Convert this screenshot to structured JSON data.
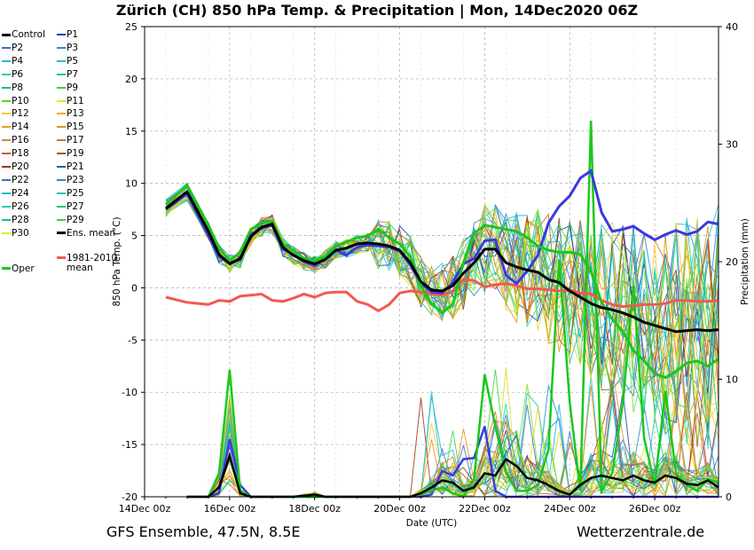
{
  "title": "Zürich  (CH)  850 hPa Temp. & Precipitation | Mon, 14Dec2020 06Z",
  "footer": {
    "left": "GFS Ensemble, 47.5N, 8.5E",
    "right": "Wetterzentrale.de"
  },
  "colors": {
    "control": "#000000",
    "ens_mean": "#000000",
    "oper": "#19c819",
    "climate_mean": "#f05a50",
    "perturbations": [
      "#1f3fb0",
      "#3a72c8",
      "#1e90d8",
      "#25b4d8",
      "#20c0c8",
      "#1ed0a8",
      "#20c878",
      "#30d840",
      "#78e020",
      "#d8e020",
      "#f0d030",
      "#e8b028",
      "#e09020",
      "#d87818",
      "#c86018",
      "#b84818",
      "#a03018",
      "#1f3fb0",
      "#3a72c8",
      "#1e90d8",
      "#25b4d8",
      "#20c0c8",
      "#1ed0a8",
      "#20c878",
      "#30d840",
      "#78e020",
      "#d8e020",
      "#f0d030",
      "#e8b028",
      "#e09020"
    ]
  },
  "legend": [
    {
      "label": "Control",
      "color": "#000000"
    },
    {
      "label": "P1",
      "color": "#1f3fb0"
    },
    {
      "label": "P2",
      "color": "#3a72c8"
    },
    {
      "label": "P3",
      "color": "#1e90d8"
    },
    {
      "label": "P4",
      "color": "#25b4d8"
    },
    {
      "label": "P5",
      "color": "#20c0c8"
    },
    {
      "label": "P6",
      "color": "#1ed0a8"
    },
    {
      "label": "P7",
      "color": "#20c878"
    },
    {
      "label": "P8",
      "color": "#20b890"
    },
    {
      "label": "P9",
      "color": "#30d840"
    },
    {
      "label": "P10",
      "color": "#50e020"
    },
    {
      "label": "P11",
      "color": "#e8e820"
    },
    {
      "label": "P12",
      "color": "#f0d030"
    },
    {
      "label": "P13",
      "color": "#e8b028"
    },
    {
      "label": "P14",
      "color": "#e8a020"
    },
    {
      "label": "P15",
      "color": "#e09020"
    },
    {
      "label": "P16",
      "color": "#c89040"
    },
    {
      "label": "P17",
      "color": "#d87818"
    },
    {
      "label": "P18",
      "color": "#c86018"
    },
    {
      "label": "P19",
      "color": "#b84818"
    },
    {
      "label": "P20",
      "color": "#a03018"
    },
    {
      "label": "P21",
      "color": "#1f5fb0"
    },
    {
      "label": "P22",
      "color": "#3a72c8"
    },
    {
      "label": "P23",
      "color": "#1e90d8"
    },
    {
      "label": "P24",
      "color": "#25b4d8"
    },
    {
      "label": "P25",
      "color": "#20c0c8"
    },
    {
      "label": "P26",
      "color": "#1ed0a8"
    },
    {
      "label": "P27",
      "color": "#20c878"
    },
    {
      "label": "P28",
      "color": "#20b890"
    },
    {
      "label": "P29",
      "color": "#30d840"
    },
    {
      "label": "P30",
      "color": "#e8e820"
    },
    {
      "label": "Ens. mean",
      "color": "#000000"
    },
    {
      "label": "1981-2010 mean",
      "color": "#f05a50"
    },
    {
      "label": "Oper",
      "color": "#19c819"
    }
  ],
  "chart_data": {
    "type": "line",
    "xlabel": "Date (UTC)",
    "ylabel": "850 hPa Temp. (°C)",
    "y2label": "Precipitation (mm)",
    "xlim": [
      0,
      324
    ],
    "ylim": [
      -20,
      25
    ],
    "y2lim": [
      0,
      40
    ],
    "x_ticks": [
      0,
      48,
      96,
      144,
      192,
      240,
      288
    ],
    "x_tick_labels": [
      "14Dec 00z",
      "16Dec 00z",
      "18Dec 00z",
      "20Dec 00z",
      "22Dec 00z",
      "24Dec 00z",
      "26Dec 00z"
    ],
    "y_ticks": [
      -20,
      -15,
      -10,
      -5,
      0,
      5,
      10,
      15,
      20,
      25
    ],
    "y2_ticks": [
      0,
      10,
      20,
      30,
      40
    ],
    "grid": true,
    "temp_x": [
      12,
      24,
      36,
      42,
      48,
      54,
      60,
      66,
      72,
      78,
      84,
      90,
      96,
      102,
      108,
      114,
      120,
      126,
      132,
      138,
      144,
      150,
      156,
      162,
      168,
      174,
      180,
      186,
      192,
      198,
      204,
      210,
      216,
      222,
      228,
      234,
      240,
      246,
      252,
      258,
      264,
      270,
      276,
      282,
      288,
      294,
      300,
      306,
      312,
      318,
      324
    ],
    "series": [
      {
        "name": "Ens. mean",
        "role": "ens_mean",
        "values": [
          7.6,
          9.2,
          5.4,
          3.2,
          2.3,
          2.8,
          4.9,
          5.8,
          6.1,
          3.9,
          3.1,
          2.6,
          2.3,
          2.7,
          3.6,
          3.8,
          4.2,
          4.3,
          4.2,
          4.0,
          3.6,
          2.4,
          0.6,
          -0.2,
          -0.3,
          0.2,
          1.4,
          2.4,
          3.7,
          3.7,
          2.4,
          2.0,
          1.7,
          1.5,
          0.8,
          0.5,
          -0.3,
          -0.9,
          -1.5,
          -1.9,
          -2.1,
          -2.4,
          -2.8,
          -3.3,
          -3.6,
          -3.9,
          -4.2,
          -4.1,
          -4.0,
          -4.1,
          -4.0
        ]
      },
      {
        "name": "1981-2010 mean",
        "role": "climate_mean",
        "values": [
          -0.9,
          -1.4,
          -1.6,
          -1.2,
          -1.3,
          -0.8,
          -0.7,
          -0.6,
          -1.2,
          -1.3,
          -1.0,
          -0.6,
          -0.9,
          -0.5,
          -0.4,
          -0.4,
          -1.3,
          -1.6,
          -2.2,
          -1.6,
          -0.5,
          -0.3,
          -0.4,
          -0.6,
          -0.7,
          -0.3,
          0.8,
          0.7,
          0.1,
          0.3,
          0.4,
          0.2,
          -0.1,
          -0.1,
          -0.2,
          -0.3,
          -0.2,
          -0.5,
          -0.6,
          -1.2,
          -1.6,
          -1.8,
          -1.7,
          -1.6,
          -1.6,
          -1.5,
          -1.2,
          -1.2,
          -1.3,
          -1.3,
          -1.2
        ]
      },
      {
        "name": "P1",
        "role": "highlight_blue",
        "values": [
          7.5,
          9.0,
          5.0,
          3.0,
          2.4,
          2.7,
          5.1,
          5.7,
          6.0,
          3.7,
          3.2,
          2.5,
          2.1,
          2.8,
          3.6,
          3.1,
          3.9,
          4.1,
          4.0,
          3.9,
          3.5,
          2.2,
          0.4,
          -0.4,
          -0.5,
          0.5,
          2.3,
          2.8,
          4.5,
          4.6,
          1.2,
          0.4,
          1.6,
          3.1,
          6.2,
          7.8,
          8.8,
          10.5,
          11.2,
          7.2,
          5.4,
          5.6,
          5.9,
          5.2,
          4.6,
          5.1,
          5.5,
          5.1,
          5.4,
          6.3,
          6.1
        ]
      },
      {
        "name": "Oper",
        "role": "oper",
        "values": [
          8.0,
          9.8,
          6.0,
          3.8,
          2.6,
          3.4,
          5.6,
          6.2,
          6.4,
          4.2,
          3.6,
          2.8,
          2.6,
          3.0,
          4.0,
          4.4,
          4.8,
          5.0,
          5.6,
          4.8,
          4.2,
          3.0,
          0.2,
          -1.5,
          -2.4,
          -1.6,
          2.4,
          5.2,
          6.0,
          5.8,
          5.6,
          5.4,
          4.8,
          4.0,
          3.6,
          3.4,
          3.4,
          3.2,
          1.6,
          -1.4,
          -3.0,
          -4.2,
          -6.0,
          -7.0,
          -8.2,
          -8.6,
          -8.0,
          -7.2,
          -7.0,
          -7.5,
          -6.8
        ]
      }
    ],
    "precip_x": [
      24,
      30,
      36,
      42,
      48,
      54,
      60,
      66,
      72,
      78,
      84,
      90,
      96,
      102,
      108,
      114,
      120,
      126,
      132,
      138,
      144,
      150,
      156,
      162,
      168,
      174,
      180,
      186,
      192,
      198,
      204,
      210,
      216,
      222,
      228,
      234,
      240,
      246,
      252,
      258,
      264,
      270,
      276,
      282,
      288,
      294,
      300,
      306,
      312,
      318,
      324
    ],
    "precip_series": [
      {
        "name": "Ens. mean",
        "role": "ens_mean",
        "values": [
          0,
          0,
          0,
          0.8,
          3.5,
          0.3,
          0,
          0,
          0,
          0,
          0,
          0.1,
          0.2,
          0,
          0,
          0,
          0,
          0,
          0,
          0,
          0,
          0,
          0.3,
          0.8,
          1.4,
          1.2,
          0.5,
          0.8,
          2.0,
          1.8,
          3.2,
          2.6,
          1.6,
          1.4,
          1.0,
          0.5,
          0.2,
          1.0,
          1.6,
          1.8,
          1.6,
          1.4,
          1.8,
          1.4,
          1.2,
          1.8,
          1.6,
          1.1,
          1.0,
          1.4,
          0.8
        ]
      },
      {
        "name": "Oper",
        "role": "oper",
        "values": [
          0,
          0,
          0,
          2.0,
          10.8,
          0.5,
          0,
          0,
          0,
          0,
          0,
          0,
          0,
          0,
          0,
          0,
          0,
          0,
          0,
          0,
          0,
          0,
          0.2,
          0.5,
          0.8,
          0.3,
          0,
          1.5,
          10.4,
          6.0,
          2.0,
          0.5,
          0.5,
          1.0,
          4.0,
          20.2,
          8.0,
          0.5,
          32.0,
          0.5,
          2.0,
          8.0,
          18.0,
          5.0,
          1.0,
          9.0,
          2.0,
          1.0,
          0.5,
          1.5,
          1.2
        ]
      },
      {
        "name": "P1",
        "role": "highlight_blue",
        "values": [
          0,
          0,
          0,
          0.3,
          4.9,
          1.0,
          0,
          0,
          0,
          0,
          0,
          0,
          0,
          0,
          0,
          0,
          0,
          0,
          0,
          0,
          0,
          0,
          0,
          0.2,
          2.2,
          1.8,
          3.2,
          3.3,
          6.0,
          0.5,
          0,
          0,
          0,
          0,
          0,
          0,
          0,
          0,
          0,
          0,
          0,
          0,
          0,
          0,
          0,
          0,
          0,
          0,
          0,
          0,
          0
        ]
      }
    ]
  }
}
